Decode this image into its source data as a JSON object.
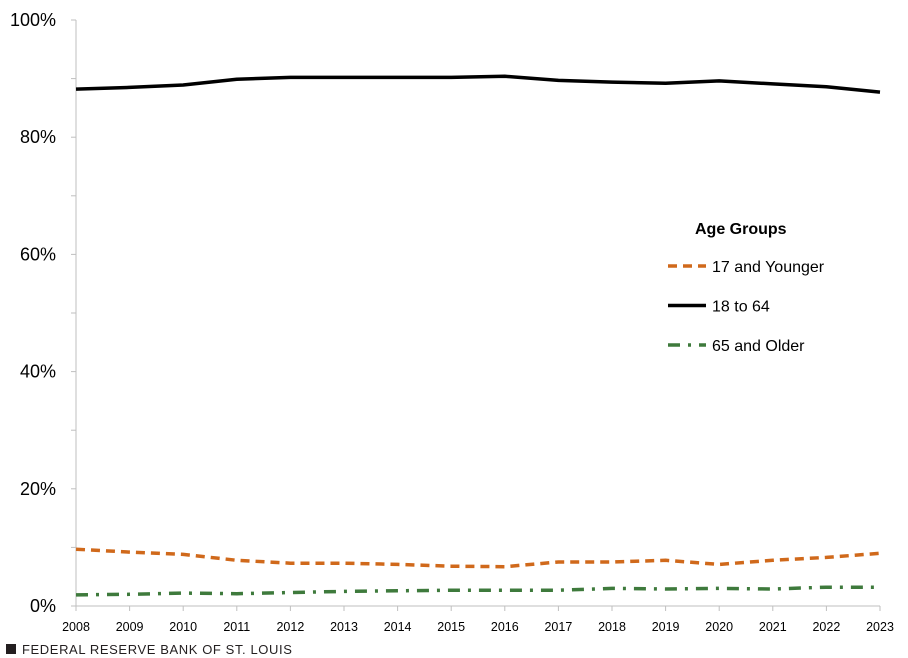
{
  "chart_data": {
    "type": "line",
    "x": [
      2008,
      2009,
      2010,
      2011,
      2012,
      2013,
      2014,
      2015,
      2016,
      2017,
      2018,
      2019,
      2020,
      2021,
      2022,
      2023
    ],
    "ylim": [
      0,
      100
    ],
    "y_ticks": [
      "0%",
      "20%",
      "40%",
      "60%",
      "80%",
      "100%"
    ],
    "x_ticks": [
      "2008",
      "2009",
      "2010",
      "2011",
      "2012",
      "2013",
      "2014",
      "2015",
      "2016",
      "2017",
      "2018",
      "2019",
      "2020",
      "2021",
      "2022",
      "2023"
    ],
    "legend": {
      "title": "Age Groups",
      "placement": "right-center"
    },
    "series": [
      {
        "name": "17 and Younger",
        "color": "#d0691b",
        "style": "dashed",
        "values": [
          9.7,
          9.2,
          8.8,
          7.8,
          7.3,
          7.3,
          7.1,
          6.8,
          6.7,
          7.5,
          7.5,
          7.8,
          7.1,
          7.8,
          8.3,
          9.0
        ]
      },
      {
        "name": "18 to 64",
        "color": "#000000",
        "style": "solid",
        "values": [
          88.2,
          88.5,
          88.9,
          89.9,
          90.2,
          90.2,
          90.2,
          90.2,
          90.4,
          89.7,
          89.4,
          89.2,
          89.6,
          89.1,
          88.6,
          87.7
        ]
      },
      {
        "name": "65 and Older",
        "color": "#3e7a3c",
        "style": "dash-dot",
        "values": [
          1.9,
          2.0,
          2.2,
          2.1,
          2.3,
          2.5,
          2.6,
          2.7,
          2.7,
          2.7,
          3.0,
          2.9,
          3.0,
          2.9,
          3.2,
          3.2
        ]
      }
    ]
  },
  "footer": {
    "source": "FEDERAL RESERVE BANK OF ST. LOUIS"
  }
}
